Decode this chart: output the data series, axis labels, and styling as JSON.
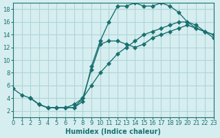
{
  "bg_color": "#d6eef0",
  "grid_color": "#b0d4d8",
  "line_color": "#1a7070",
  "xlabel": "Humidex (Indice chaleur)",
  "xlim": [
    0,
    23
  ],
  "ylim": [
    1,
    19
  ],
  "yticks": [
    2,
    4,
    6,
    8,
    10,
    12,
    14,
    16,
    18
  ],
  "xticks": [
    0,
    1,
    2,
    3,
    4,
    5,
    6,
    7,
    8,
    9,
    10,
    11,
    12,
    13,
    14,
    15,
    16,
    17,
    18,
    19,
    20,
    21,
    22,
    23
  ],
  "line1_x": [
    0,
    1,
    2,
    3,
    4,
    5,
    6,
    7,
    8,
    9,
    10,
    11,
    12,
    13,
    14,
    15,
    16,
    17,
    18,
    19,
    20,
    21,
    22,
    23
  ],
  "line1_y": [
    5.5,
    4.5,
    4.0,
    3.0,
    2.5,
    2.5,
    2.5,
    2.5,
    3.5,
    9.0,
    13.0,
    16.0,
    18.5,
    18.5,
    19.0,
    18.5,
    18.5,
    19.0,
    18.5,
    17.5,
    16.0,
    15.0,
    14.5,
    14.0
  ],
  "line2_x": [
    2,
    3,
    4,
    5,
    6,
    7,
    8,
    9,
    10,
    11,
    12,
    13,
    14,
    15,
    16,
    17,
    18,
    19,
    20,
    21,
    22,
    23
  ],
  "line2_y": [
    4.0,
    3.0,
    2.5,
    2.5,
    2.5,
    2.5,
    4.0,
    6.0,
    8.0,
    9.5,
    11.0,
    12.0,
    13.0,
    14.0,
    14.5,
    15.0,
    15.5,
    16.0,
    16.0,
    15.5,
    14.5,
    14.0
  ],
  "line3_x": [
    2,
    3,
    4,
    5,
    6,
    7,
    8,
    9,
    10,
    11,
    12,
    13,
    14,
    15,
    16,
    17,
    18,
    19,
    20,
    21,
    22,
    23
  ],
  "line3_y": [
    4.0,
    3.0,
    2.5,
    2.5,
    2.5,
    3.0,
    4.0,
    8.5,
    12.5,
    13.0,
    13.0,
    12.5,
    12.0,
    12.5,
    13.5,
    14.0,
    14.5,
    15.0,
    15.5,
    15.0,
    14.5,
    13.5
  ]
}
